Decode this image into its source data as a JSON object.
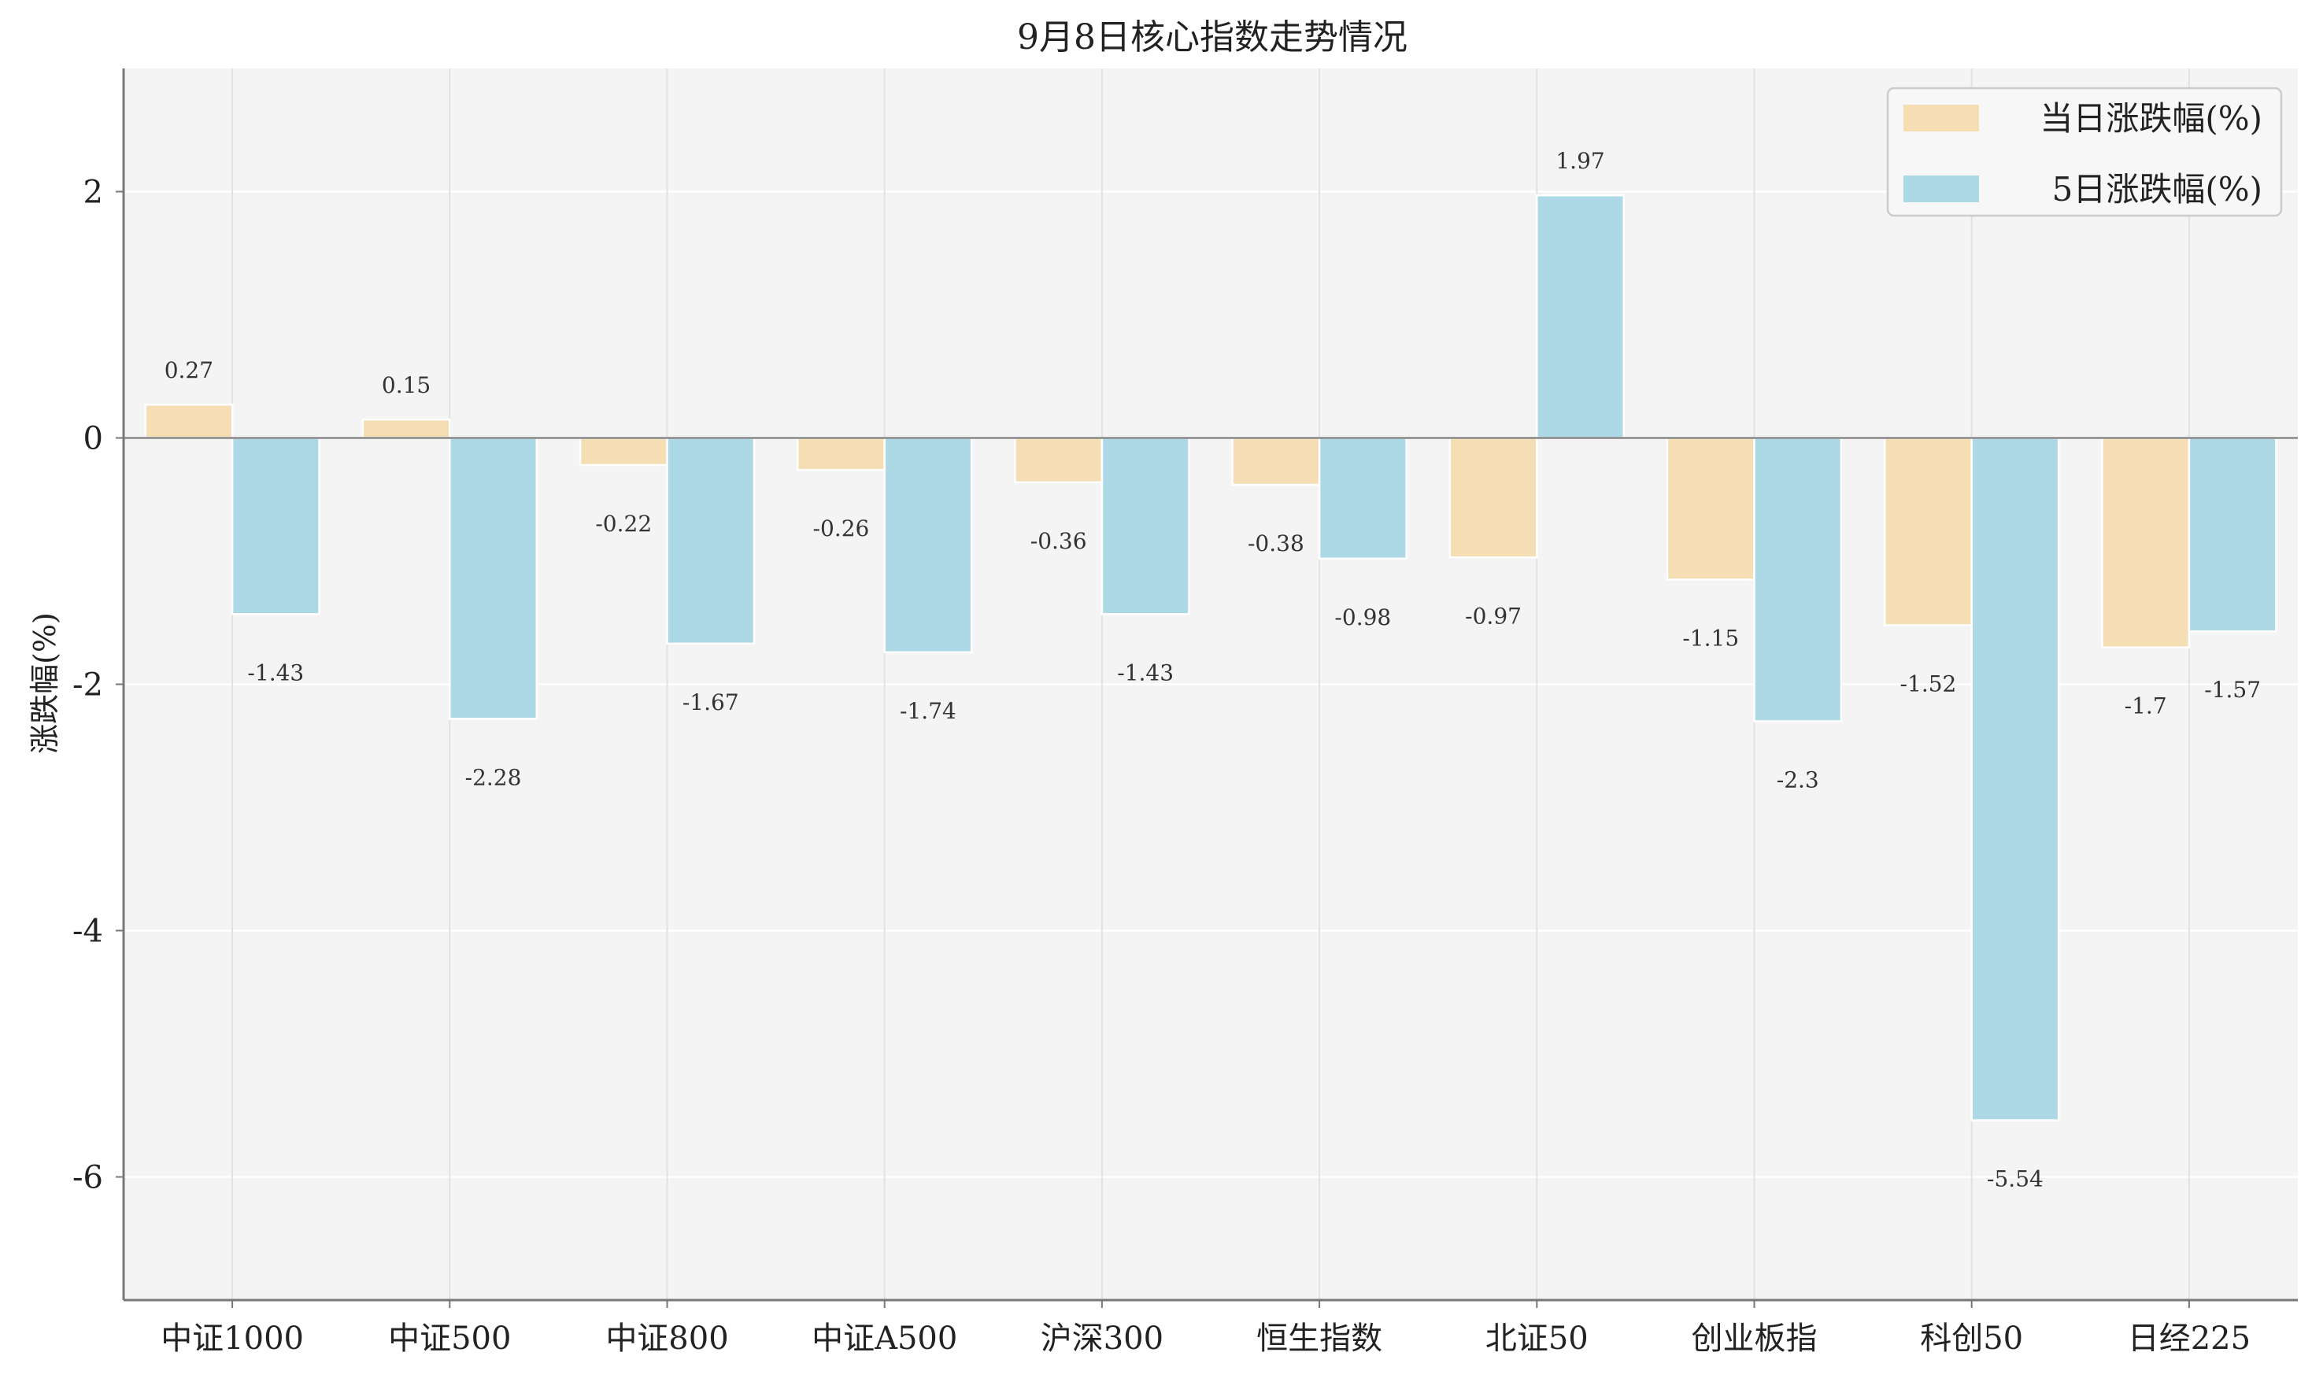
{
  "chart_data": {
    "type": "bar",
    "title": "9月8日核心指数走势情况",
    "xlabel": "",
    "ylabel": "涨跌幅(%)",
    "ylim": [
      -7,
      3
    ],
    "yticks": [
      2,
      0,
      -2,
      -4,
      -6
    ],
    "grid": true,
    "legend_position": "top-right",
    "categories": [
      "中证1000",
      "中证500",
      "中证800",
      "中证A500",
      "沪深300",
      "恒生指数",
      "北证50",
      "创业板指",
      "科创50",
      "日经225"
    ],
    "series": [
      {
        "name": "当日涨跌幅(%)",
        "color": "#f5deb3",
        "values": [
          0.27,
          0.15,
          -0.22,
          -0.26,
          -0.36,
          -0.38,
          -0.97,
          -1.15,
          -1.52,
          -1.7
        ]
      },
      {
        "name": "5日涨跌幅(%)",
        "color": "#add8e6",
        "values": [
          -1.43,
          -2.28,
          -1.67,
          -1.74,
          -1.43,
          -0.98,
          1.97,
          -2.3,
          -5.54,
          -1.57
        ]
      }
    ]
  }
}
